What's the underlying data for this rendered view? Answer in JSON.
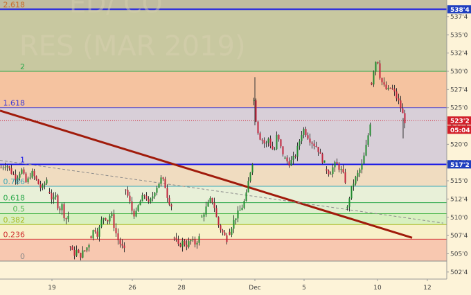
{
  "watermark": "RES (MAR 2019)",
  "watermark_top": "ED/ CO",
  "colors": {
    "bg": "#fdf3d8",
    "bull": "#1f8a2e",
    "bear": "#c0223a",
    "trend": "#a01a0a",
    "hline": "#1a1ae6",
    "tag_blue": "#1f3fbf",
    "tag_red": "#d21f2a"
  },
  "chart_data": {
    "type": "candlestick",
    "title": "",
    "x_ticks": [
      "19",
      "26",
      "28",
      "Dec",
      "5",
      "10",
      "12"
    ],
    "y_ticks": [
      "502'4",
      "505'0",
      "507'4",
      "510'0",
      "512'4",
      "515'0",
      "517'4",
      "520'0",
      "522'4",
      "525'0",
      "527'4",
      "530'0",
      "532'4",
      "535'0",
      "537'4"
    ],
    "ylim": [
      501.75,
      539.5
    ],
    "price_tags": [
      {
        "text": "538'4",
        "value": 538.5,
        "style": "blue"
      },
      {
        "text": "523'2",
        "value": 523.25,
        "style": "red"
      },
      {
        "text": "05:04",
        "value": 522.0,
        "style": "red"
      },
      {
        "text": "517'2",
        "value": 517.25,
        "style": "blue"
      }
    ],
    "fib_levels": [
      {
        "label": "2.618",
        "value": 538.5,
        "color": "#c87030",
        "band": "#c8c8a0"
      },
      {
        "label": "2",
        "value": 530.0,
        "color": "#2aa84a",
        "band": "#f5c3a0"
      },
      {
        "label": "1.618",
        "value": 525.0,
        "color": "#3a3ad8",
        "band": "#d8cfd8"
      },
      {
        "label": "1",
        "value": 517.25,
        "color": "#1a1ae6",
        "band": "#f0dcc0"
      },
      {
        "label": "0.786",
        "value": 514.25,
        "color": "#38a8b8",
        "band": "#e8f0d8"
      },
      {
        "label": "0.618",
        "value": 512.0,
        "color": "#2aa84a",
        "band": "#e0eed0"
      },
      {
        "label": "0.5",
        "value": 510.5,
        "color": "#4cb84c",
        "band": "#d8f0c0"
      },
      {
        "label": "0.382",
        "value": 509.0,
        "color": "#a8b820",
        "band": "#f8f0c8"
      },
      {
        "label": "0.236",
        "value": 507.0,
        "color": "#d03030",
        "band": "#f8c8b0"
      },
      {
        "label": "0",
        "value": 504.0,
        "color": "#888888",
        "band": "#fdf3d8"
      }
    ],
    "horizontal_lines": [
      538.5,
      517.25
    ],
    "dotted_level": 523.25,
    "trendlines": [
      {
        "from": {
          "x": 0,
          "y": 524.6
        },
        "to": {
          "x": 595,
          "y": 507.2
        },
        "style": "solid"
      },
      {
        "from": {
          "x": 0,
          "y": 517.8
        },
        "to": {
          "x": 640,
          "y": 509.2
        },
        "style": "dashed"
      }
    ],
    "segments": [
      {
        "x0": 0,
        "x1": 70,
        "open": 516.0,
        "path": [
          516.8,
          517.3,
          516.2,
          515.4,
          516.6,
          514.6,
          516.2,
          515.0,
          513.8,
          515.2
        ]
      },
      {
        "x0": 70,
        "x1": 100,
        "path": [
          513.5,
          512.2,
          512.8,
          511.0,
          511.6,
          509.6,
          510.2
        ]
      },
      {
        "x0": 100,
        "x1": 130,
        "path": [
          506.0,
          504.8,
          505.4,
          504.6,
          505.2,
          505.6,
          506.4
        ]
      },
      {
        "x0": 130,
        "x1": 180,
        "path": [
          507.4,
          508.6,
          507.6,
          509.4,
          510.2,
          509.6,
          510.6,
          508.6,
          507.0,
          506.2,
          505.4
        ]
      },
      {
        "x0": 180,
        "x1": 250,
        "path": [
          513.8,
          512.4,
          510.8,
          510.2,
          511.8,
          512.6,
          513.2,
          511.8,
          512.6,
          513.8,
          514.6,
          515.4,
          514.4,
          512.4,
          511.6
        ]
      },
      {
        "x0": 250,
        "x1": 290,
        "path": [
          507.2,
          506.0,
          506.6,
          506.2,
          506.8,
          506.4,
          507.2
        ]
      },
      {
        "x0": 290,
        "x1": 330,
        "path": [
          510.0,
          511.0,
          511.8,
          512.6,
          511.4,
          509.2,
          508.4,
          507.6,
          507.0
        ]
      },
      {
        "x0": 330,
        "x1": 365,
        "path": [
          508.0,
          509.2,
          510.2,
          510.8,
          511.6,
          512.8,
          515.6,
          517.6
        ]
      },
      {
        "x0": 365,
        "x1": 410,
        "path": [
          526.0,
          522.4,
          521.0,
          520.6,
          519.8,
          520.8,
          519.6,
          519.0,
          521.4,
          519.8,
          518.8
        ]
      },
      {
        "x0": 410,
        "x1": 470,
        "path": [
          518.0,
          517.4,
          517.8,
          518.6,
          520.4,
          522.2,
          521.4,
          520.6,
          520.0,
          519.6,
          518.2,
          517.4
        ]
      },
      {
        "x0": 470,
        "x1": 500,
        "path": [
          516.6,
          516.0,
          516.8,
          517.4,
          516.8,
          516.2,
          515.0
        ]
      },
      {
        "x0": 500,
        "x1": 535,
        "path": [
          511.2,
          513.4,
          514.6,
          515.4,
          516.2,
          517.0,
          518.6,
          520.6,
          523.0
        ]
      },
      {
        "x0": 535,
        "x1": 585,
        "path": [
          528.4,
          530.8,
          532.0,
          529.4,
          528.2,
          527.6,
          527.4,
          527.8,
          527.2,
          526.4,
          525.6,
          524.4,
          523.2
        ]
      }
    ]
  }
}
